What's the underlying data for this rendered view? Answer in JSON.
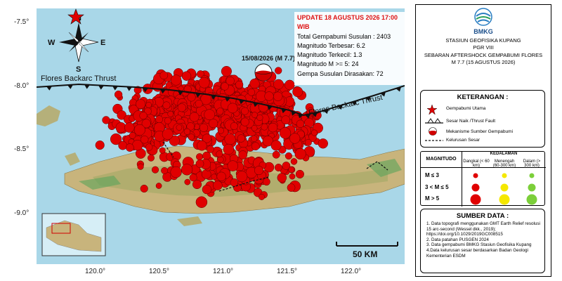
{
  "info_box": {
    "update": "UPDATE 18 AGUSTUS 2026 17:00 WIB",
    "total": "Total Gempabumi Susulan : 2403",
    "max_mag": "Magnitudo Terbesar: 6.2",
    "min_mag": "Magnitudo Terkecil: 1.3",
    "mag_ge5": "Magnitudo M >= 5: 24",
    "felt": "Gempa Susulan Dirasakan: 72"
  },
  "mainshock_label": "15/08/2026 (M 7.7)",
  "fault_labels": [
    "Flores Backarc Thrust",
    "Flores Backarc Thrust"
  ],
  "compass": {
    "n": "N",
    "s": "S",
    "e": "E",
    "w": "W"
  },
  "scale_label": "50 KM",
  "axes": {
    "lat_labels": [
      "-7.5°",
      "-8.0°",
      "-8.5°",
      "-9.0°"
    ],
    "lon_labels": [
      "120.0°",
      "120.5°",
      "121.0°",
      "121.5°",
      "122.0°"
    ]
  },
  "legend": {
    "org": "BMKG",
    "station": "STASIUN GEOFISIKA KUPANG",
    "region": "PGR VIII",
    "title_line1": "SEBARAN AFTERSHOCK GEMPABUMI FLORES",
    "title_line2": "M 7.7 (15 AGUSTUS 2026)",
    "keterangan_title": "KETERANGAN :",
    "items": [
      "Gempabumi Utama",
      "Sesar Naik /Thrust Fault",
      "Mekanisme Sumber Gempabumi",
      "Kelurusan Sesar"
    ],
    "table": {
      "magnitudo": "MAGNITUDO",
      "kedalaman": "KEDALAMAN",
      "depth_cols": [
        "Dangkal (< 60 km)",
        "Menengah (60-300 km)",
        "Dalam (> 300 km)"
      ],
      "mag_rows": [
        "M ≤ 3",
        "3 < M ≤ 5",
        "M > 5"
      ],
      "depth_colors": [
        "#e00000",
        "#f5e800",
        "#7ccf3a"
      ]
    },
    "sumber_title": "SUMBER DATA :",
    "sources": [
      "1. Data topografi menggunakan GMT Earth Relief resolusi 15 arc-second (Wessel dkk., 2019); https://doi.org/10.1029/2019GC008515",
      "2. Data patahan PUSGEN 2024",
      "3. Data gempabumi BMKG Stasiun Geofisika Kupang",
      "4.Data kelurusan sesar berdasarkan Badan Geologi Kementerian ESDM"
    ]
  }
}
